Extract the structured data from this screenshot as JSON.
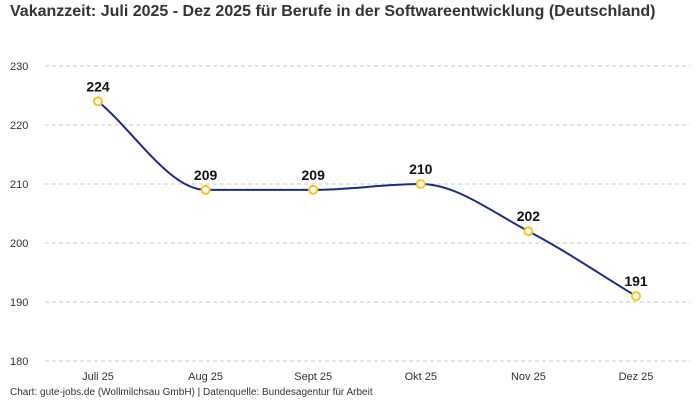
{
  "chart_data": {
    "type": "line",
    "title": "Vakanzzeit: Juli 2025 - Dez 2025 für Berufe in der Softwareentwicklung (Deutschland)",
    "categories": [
      "Juli 25",
      "Aug 25",
      "Sept 25",
      "Okt 25",
      "Nov 25",
      "Dez 25"
    ],
    "values": [
      224,
      209,
      209,
      210,
      202,
      191
    ],
    "ylim": [
      180,
      230
    ],
    "yticks": [
      180,
      190,
      200,
      210,
      220,
      230
    ],
    "grid": true,
    "line_color": "#1a2a8c",
    "marker_color": "#f5c518",
    "data_labels": true
  },
  "footer": "Chart: gute-jobs.de (Wollmilchsau GmbH) | Datenquelle: Bundesagentur für Arbeit"
}
